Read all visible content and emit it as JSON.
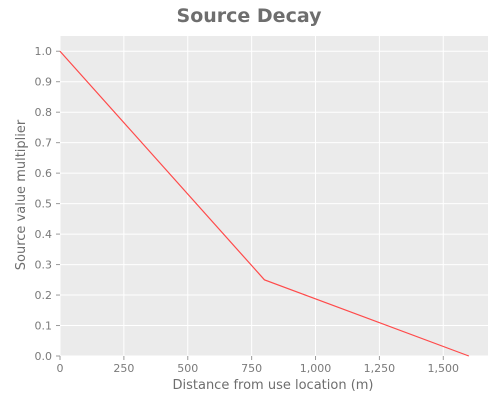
{
  "chart_data": {
    "type": "line",
    "title": "Source Decay",
    "xlabel": "Distance from use location (m)",
    "ylabel": "Source value multiplier",
    "xlim": [
      0,
      1675
    ],
    "ylim": [
      0,
      1.05
    ],
    "grid": true,
    "legend": "none",
    "x_ticks": [
      0,
      250,
      500,
      750,
      1000,
      1250,
      1500
    ],
    "x_tick_labels": [
      "0",
      "250",
      "500",
      "750",
      "1,000",
      "1,250",
      "1,500"
    ],
    "y_ticks": [
      0,
      0.1,
      0.2,
      0.3,
      0.4,
      0.5,
      0.6,
      0.7,
      0.8,
      0.9,
      1.0
    ],
    "y_tick_labels": [
      "0.0",
      "0.1",
      "0.2",
      "0.3",
      "0.4",
      "0.5",
      "0.6",
      "0.7",
      "0.8",
      "0.9",
      "1.0"
    ],
    "series": [
      {
        "x": [
          0,
          800,
          1600
        ],
        "y": [
          1.0,
          0.25,
          0.0
        ],
        "color": "#ff4a4a"
      }
    ],
    "colors": {
      "plot_background": "#ebebeb",
      "grid": "#ffffff",
      "text": "#6e6e6e"
    }
  }
}
